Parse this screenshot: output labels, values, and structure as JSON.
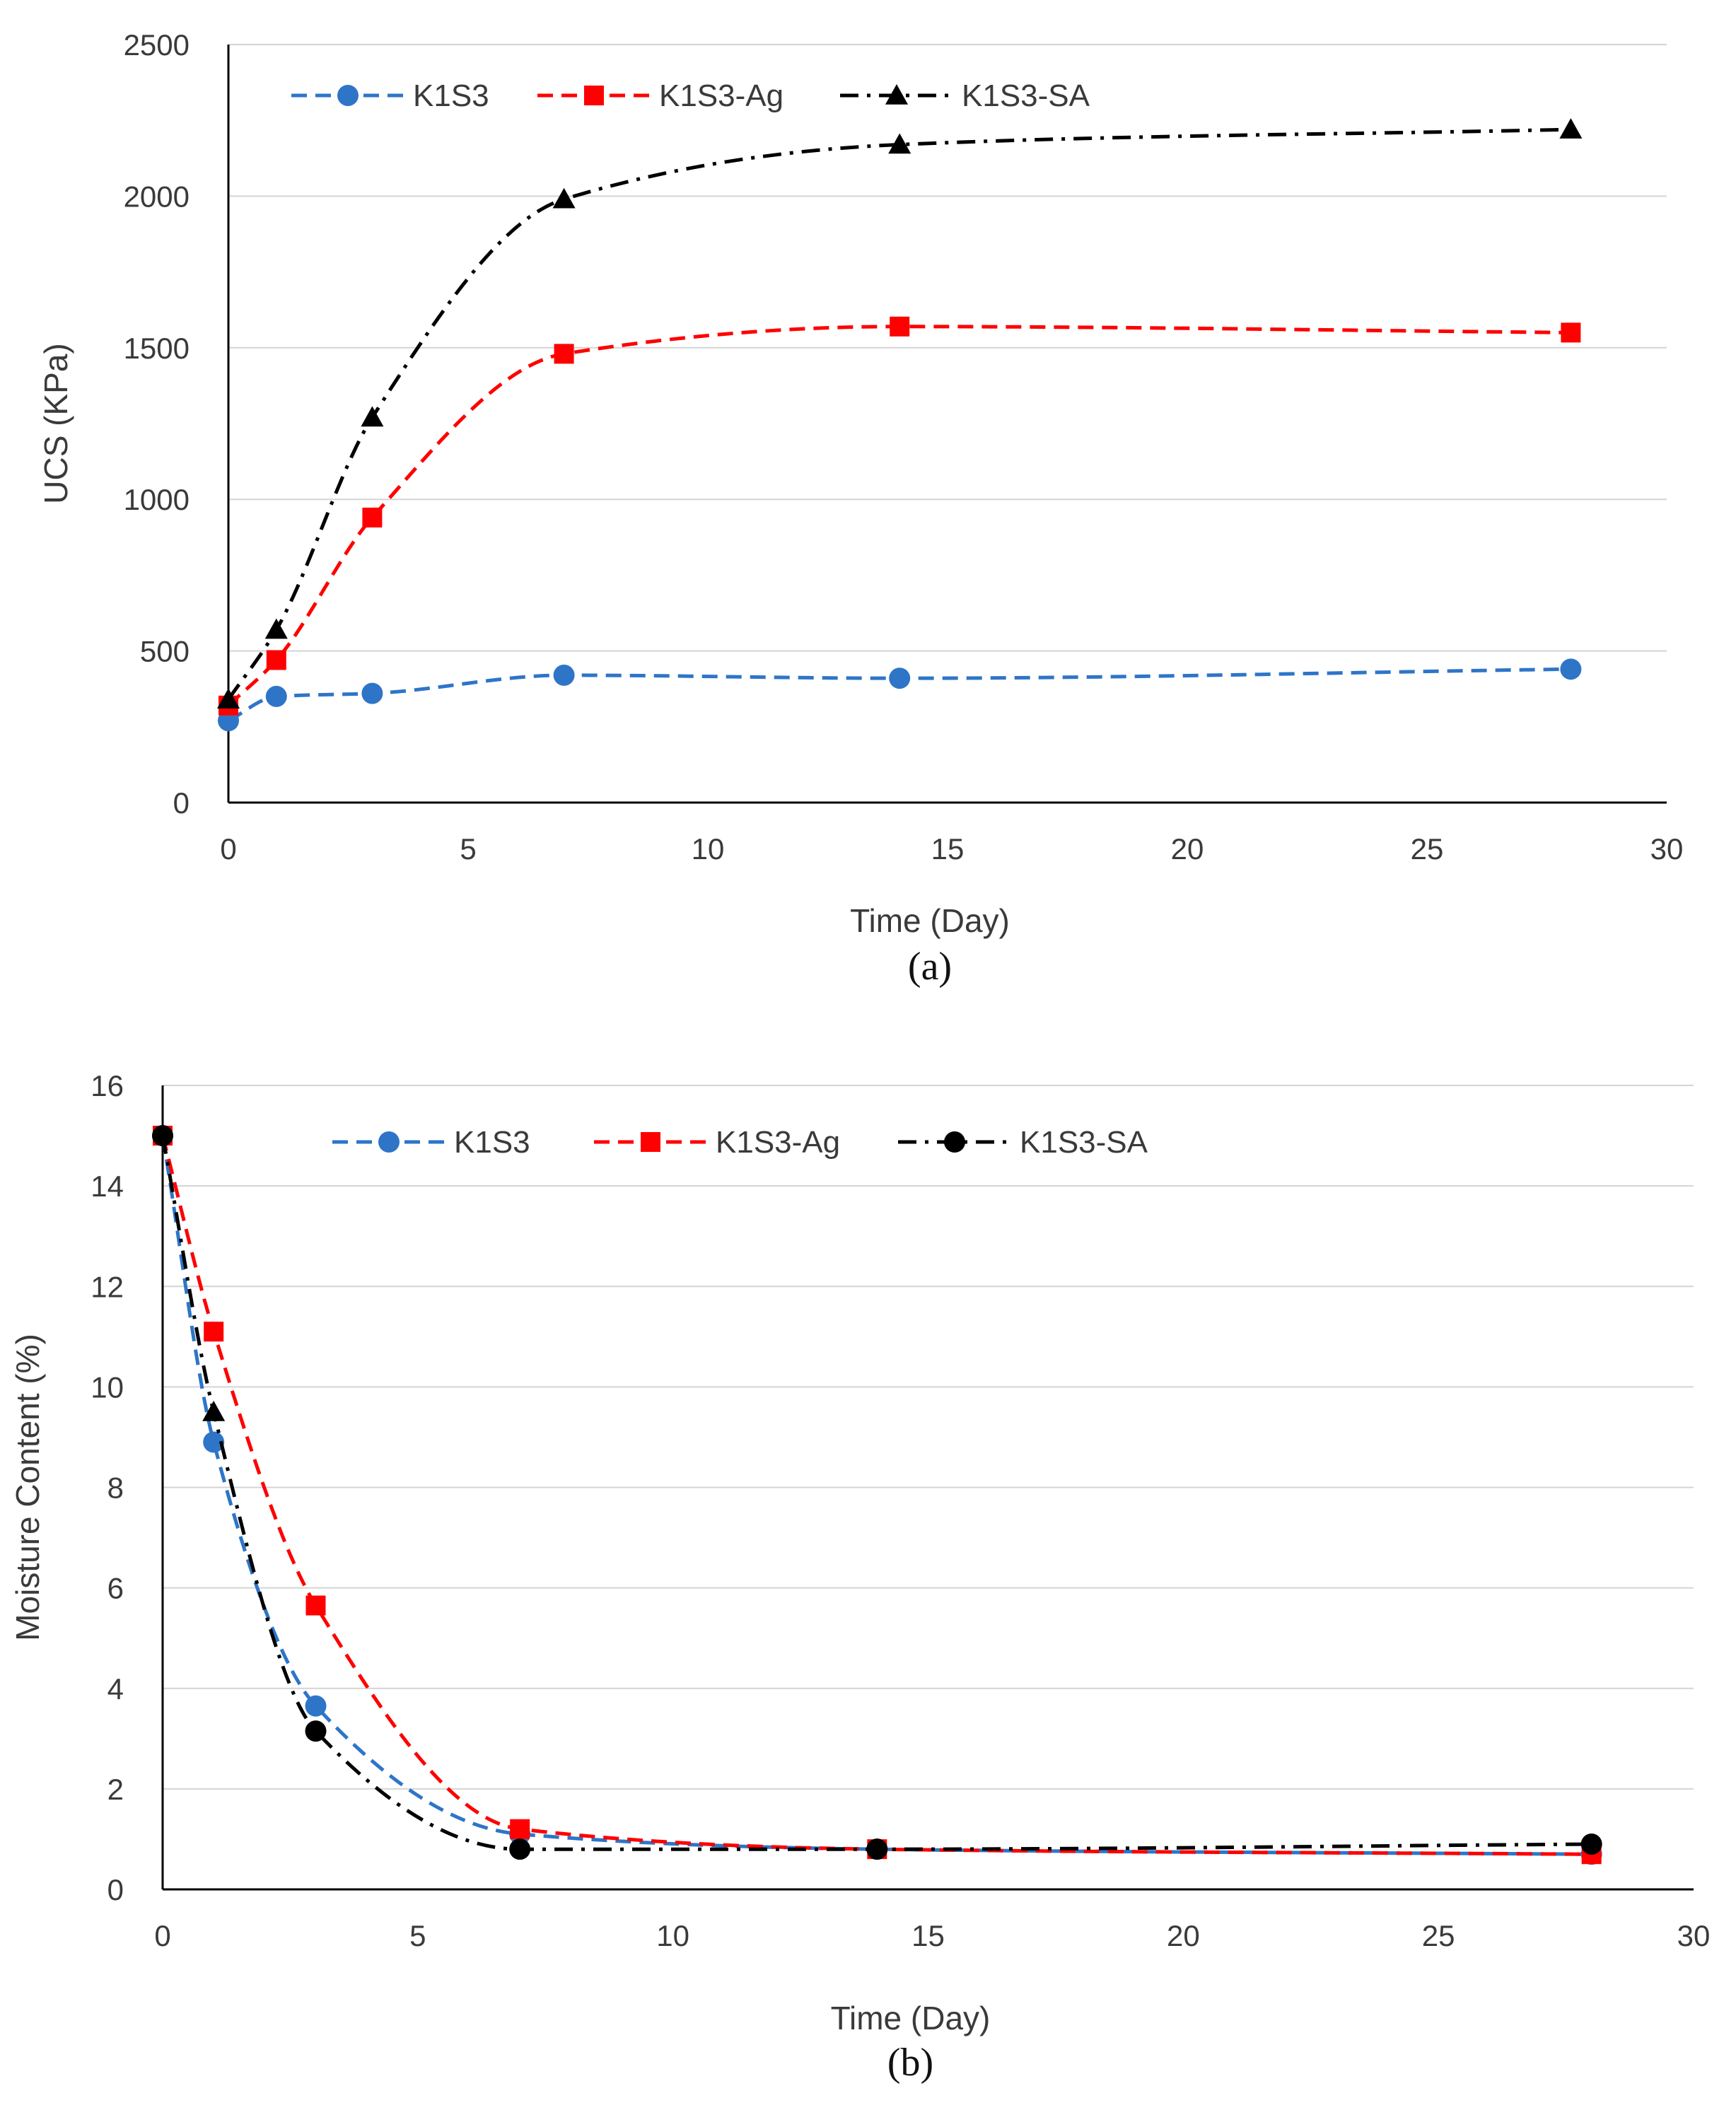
{
  "chart_data": [
    {
      "type": "line",
      "panel_label": "(a)",
      "title": "",
      "xlabel": "Time (Day)",
      "ylabel": "UCS (KPa)",
      "xlim": [
        0,
        30
      ],
      "ylim": [
        0,
        2500
      ],
      "xticks": [
        0,
        5,
        10,
        15,
        20,
        25,
        30
      ],
      "yticks": [
        0,
        500,
        1000,
        1500,
        2000,
        2500
      ],
      "xtick_labels": [
        "0",
        "5",
        "10",
        "15",
        "20",
        "25",
        "30"
      ],
      "ytick_labels": [
        "0",
        "500",
        "1000",
        "1500",
        "2000",
        "2500"
      ],
      "grid": true,
      "legend_position": "top-left",
      "x": [
        0,
        1,
        3,
        7,
        14,
        28
      ],
      "series": [
        {
          "name": "K1S3",
          "values": [
            270,
            350,
            360,
            420,
            410,
            440
          ],
          "color": "#2e75c8",
          "marker": "circle",
          "dash": "dashed"
        },
        {
          "name": "K1S3-Ag",
          "values": [
            320,
            470,
            940,
            1480,
            1570,
            1550
          ],
          "color": "#ff0000",
          "marker": "square",
          "dash": "dashed"
        },
        {
          "name": "K1S3-SA",
          "values": [
            340,
            570,
            1270,
            1990,
            2170,
            2220
          ],
          "color": "#000000",
          "marker": "triangle",
          "dash": "dashdot"
        }
      ]
    },
    {
      "type": "line",
      "panel_label": "(b)",
      "title": "",
      "xlabel": "Time (Day)",
      "ylabel": "Moisture Content (%)",
      "xlim": [
        0,
        30
      ],
      "ylim": [
        0,
        16
      ],
      "xticks": [
        0,
        5,
        10,
        15,
        20,
        25,
        30
      ],
      "yticks": [
        0,
        2,
        4,
        6,
        8,
        10,
        12,
        14,
        16
      ],
      "xtick_labels": [
        "0",
        "5",
        "10",
        "15",
        "20",
        "25",
        "30"
      ],
      "ytick_labels": [
        "0",
        "2",
        "4",
        "6",
        "8",
        "10",
        "12",
        "14",
        "16"
      ],
      "grid": true,
      "legend_position": "top-center",
      "x": [
        0,
        1,
        3,
        7,
        14,
        28
      ],
      "series": [
        {
          "name": "K1S3",
          "values": [
            15,
            8.9,
            3.65,
            1.1,
            0.8,
            0.7
          ],
          "color": "#2e75c8",
          "marker": "circle",
          "dash": "dashed"
        },
        {
          "name": "K1S3-Ag",
          "values": [
            15,
            11.1,
            5.65,
            1.2,
            0.8,
            0.7
          ],
          "color": "#ff0000",
          "marker": "square",
          "dash": "dashed"
        },
        {
          "name": "K1S3-SA",
          "values": [
            15,
            9.5,
            3.15,
            0.8,
            0.8,
            0.9
          ],
          "color": "#000000",
          "marker": "circle",
          "marker_at_day1": "triangle",
          "dash": "dashdot"
        }
      ]
    }
  ]
}
